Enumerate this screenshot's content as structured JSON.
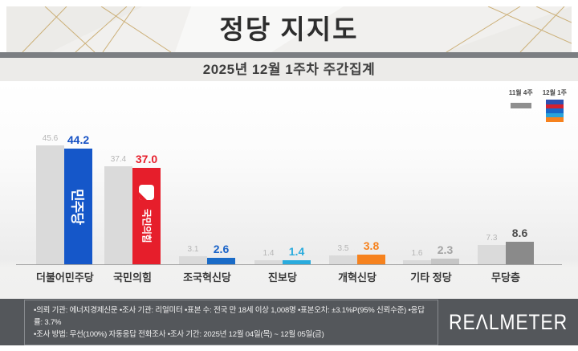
{
  "header": {
    "title": "정당 지지도",
    "subtitle": "2025년 12월 1주차 주간집계"
  },
  "legend": {
    "prev": {
      "label": "11월 4주",
      "color": "#8f8f8f"
    },
    "curr": {
      "label": "12월 1주",
      "colors": [
        "#2c4fb0",
        "#d4202e",
        "#1967c8",
        "#29a3da",
        "#f6821e"
      ]
    }
  },
  "chart_data": {
    "type": "bar",
    "title": "정당 지지도",
    "subtitle": "2025년 12월 1주차 주간집계",
    "categories": [
      "더불어민주당",
      "국민의힘",
      "조국혁신당",
      "진보당",
      "개혁신당",
      "기타 정당",
      "무당층"
    ],
    "series": [
      {
        "name": "11월 4주",
        "values": [
          45.6,
          37.4,
          3.1,
          1.4,
          3.5,
          1.6,
          7.3
        ]
      },
      {
        "name": "12월 1주",
        "values": [
          44.2,
          37.0,
          2.6,
          1.4,
          3.8,
          2.3,
          8.6
        ]
      }
    ],
    "prev_bar_color": "#dadada",
    "bar_colors": [
      "#1557c9",
      "#e61e2b",
      "#1a6bc7",
      "#29abdd",
      "#f6821e",
      "#c6c6c6",
      "#8a8a8a"
    ],
    "value_colors": [
      "#1450c4",
      "#e61e2b",
      "#1a63c8",
      "#29abdd",
      "#f6821e",
      "#a3a3a3",
      "#4c4c4c"
    ],
    "prev_value_color": "#b5b5b5",
    "bar_logos": [
      "민주당",
      "국민의힘",
      "",
      "",
      "",
      "",
      ""
    ],
    "ylim": [
      0,
      50
    ],
    "grid": false,
    "legend_position": "top-right"
  },
  "footer": {
    "line1": "•의뢰 기관: 에너지경제신문  •조사 기관: 리얼미터 •표본 수: 전국 만 18세 이상 1,008명 •표본오차: ±3.1%P(95% 신뢰수준) •응답률: 3.7%",
    "line2": "•조사 방법: 무선(100%) 자동응답 전화조사 •조사 기간: 2025년 12월 04일(목) ~ 12월 05일(금)",
    "logo": "REΛLMETER"
  }
}
